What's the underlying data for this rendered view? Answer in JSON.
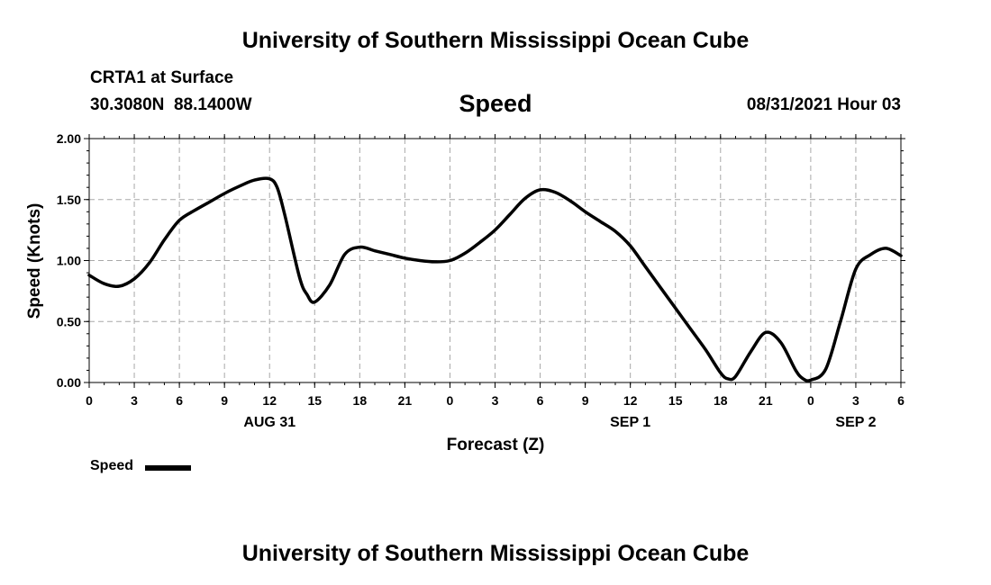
{
  "header": {
    "title": "University of Southern Mississippi Ocean Cube",
    "station": "CRTA1 at Surface",
    "coords": "30.3080N  88.1400W",
    "variable": "Speed",
    "datetime": "08/31/2021 Hour 03"
  },
  "footer": {
    "title": "University of Southern Mississippi Ocean Cube"
  },
  "legend": {
    "label": "Speed",
    "color": "#000000"
  },
  "chart_data": {
    "type": "line",
    "title": "Speed",
    "xlabel": "Forecast (Z)",
    "ylabel": "Speed (Knots)",
    "ylim": [
      0,
      2
    ],
    "xlim": [
      0,
      54
    ],
    "x_unit": "hours from 08/31/2021 00Z",
    "yticks": [
      "0.00",
      "0.50",
      "1.00",
      "1.50",
      "2.00"
    ],
    "xticks": [
      "0",
      "3",
      "6",
      "9",
      "12",
      "15",
      "18",
      "21",
      "0",
      "3",
      "6",
      "9",
      "12",
      "15",
      "18",
      "21",
      "0",
      "3",
      "6"
    ],
    "date_labels": [
      {
        "x": 12,
        "label": "AUG 31"
      },
      {
        "x": 36,
        "label": "SEP 1"
      },
      {
        "x": 51,
        "label": "SEP 2"
      }
    ],
    "grid": true,
    "legend_position": "bottom-left",
    "series": [
      {
        "name": "Speed",
        "color": "#000000",
        "x": [
          0,
          1,
          2,
          3,
          4,
          5,
          6,
          7,
          8,
          9,
          10,
          11,
          12,
          12.5,
          13,
          14,
          14.5,
          15,
          16,
          17,
          18,
          19,
          20,
          21,
          22,
          23,
          24,
          25,
          26,
          27,
          28,
          29,
          30,
          31,
          32,
          33,
          34,
          35,
          36,
          37,
          38,
          39,
          40,
          41,
          42,
          42.5,
          43,
          44,
          45,
          46,
          47,
          47.5,
          48,
          49,
          50,
          51,
          52,
          53,
          54
        ],
        "y": [
          0.88,
          0.81,
          0.79,
          0.85,
          0.98,
          1.17,
          1.33,
          1.41,
          1.48,
          1.55,
          1.61,
          1.66,
          1.67,
          1.6,
          1.38,
          0.86,
          0.72,
          0.66,
          0.8,
          1.05,
          1.11,
          1.08,
          1.05,
          1.02,
          1.0,
          0.99,
          1.0,
          1.06,
          1.15,
          1.25,
          1.38,
          1.51,
          1.58,
          1.56,
          1.49,
          1.4,
          1.32,
          1.24,
          1.12,
          0.95,
          0.78,
          0.61,
          0.44,
          0.27,
          0.08,
          0.03,
          0.05,
          0.25,
          0.41,
          0.33,
          0.1,
          0.03,
          0.02,
          0.11,
          0.51,
          0.93,
          1.05,
          1.1,
          1.04
        ]
      }
    ]
  }
}
